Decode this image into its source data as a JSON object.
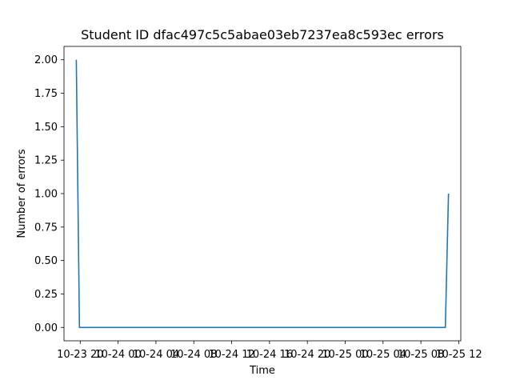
{
  "chart_data": {
    "type": "line",
    "title": "Student ID dfac497c5c5abae03eb7237ea8c593ec errors",
    "xlabel": "Time",
    "ylabel": "Number of errors",
    "ylim": [
      -0.1,
      2.1
    ],
    "yticks": [
      0.0,
      0.25,
      0.5,
      0.75,
      1.0,
      1.25,
      1.5,
      1.75,
      2.0
    ],
    "ytick_labels": [
      "0.00",
      "0.25",
      "0.50",
      "0.75",
      "1.00",
      "1.25",
      "1.50",
      "1.75",
      "2.00"
    ],
    "xlim": [
      "2023-10-23 18:17",
      "2023-10-25 12:13"
    ],
    "xticks": [
      "2023-10-23 20:00",
      "2023-10-24 00:00",
      "2023-10-24 04:00",
      "2023-10-24 08:00",
      "2023-10-24 12:00",
      "2023-10-24 16:00",
      "2023-10-24 20:00",
      "2023-10-25 00:00",
      "2023-10-25 04:00",
      "2023-10-25 08:00",
      "2023-10-25 12:00"
    ],
    "xtick_labels": [
      "10-23 20",
      "10-24 00",
      "10-24 04",
      "10-24 08",
      "10-24 12",
      "10-24 16",
      "10-24 20",
      "10-25 00",
      "10-25 04",
      "10-25 08",
      "10-25 12"
    ],
    "grid": false,
    "color": "#1f77b4",
    "series": [
      {
        "x": [
          "2023-10-23 19:35",
          "2023-10-23 19:55",
          "2023-10-25 10:35",
          "2023-10-25 10:55"
        ],
        "values": [
          2,
          0,
          0,
          1
        ]
      }
    ]
  }
}
